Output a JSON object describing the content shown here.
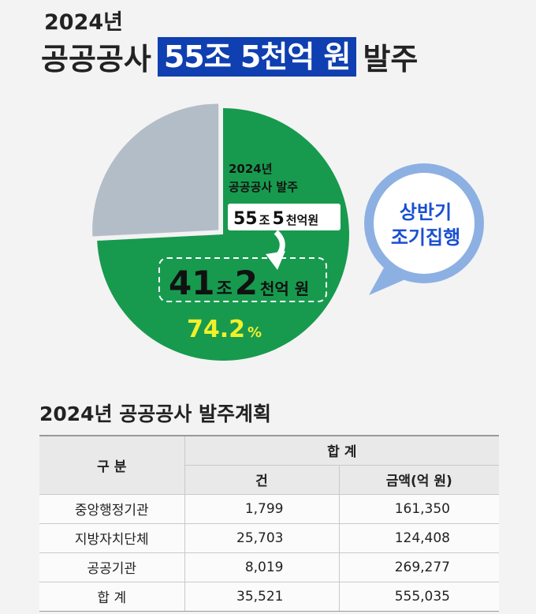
{
  "header": {
    "year": "2024년",
    "title_prefix": "공공공사",
    "title_highlight": "55조 5천억 원",
    "title_suffix": "발주"
  },
  "colors": {
    "highlight_bg": "#0f3fb0",
    "green": "#179a4e",
    "gray": "#b3bdc8",
    "bubble": "#8db0e3",
    "bubble_text": "#1a4fd0",
    "percent_text": "#f2f02a"
  },
  "chart_data": {
    "type": "pie",
    "title": "",
    "slices": [
      {
        "label": "상반기 조기집행",
        "value": 74.2
      },
      {
        "label": "",
        "value": 25.8
      }
    ],
    "annotations": {
      "inner_label_line1": "2024년",
      "inner_label_line2": "공공공사 발주",
      "total_num1": "55",
      "total_unit1": "조",
      "total_num2": "5",
      "total_unit2": "천억원",
      "early_num1": "41",
      "early_unit1": "조",
      "early_num2": "2",
      "early_unit2": "천억 원",
      "percent_value": "74.2",
      "percent_unit": "%",
      "bubble_line1": "상반기",
      "bubble_line2": "조기집행"
    }
  },
  "table": {
    "title": "2024년 공공공사 발주계획",
    "header_category": "구 분",
    "header_total": "합 계",
    "header_count": "건",
    "header_amount": "금액(억 원)",
    "rows": [
      {
        "category": "중앙행정기관",
        "count": "1,799",
        "amount": "161,350"
      },
      {
        "category": "지방자치단체",
        "count": "25,703",
        "amount": "124,408"
      },
      {
        "category": "공공기관",
        "count": "8,019",
        "amount": "269,277"
      },
      {
        "category": "합 계",
        "count": "35,521",
        "amount": "555,035"
      }
    ]
  }
}
